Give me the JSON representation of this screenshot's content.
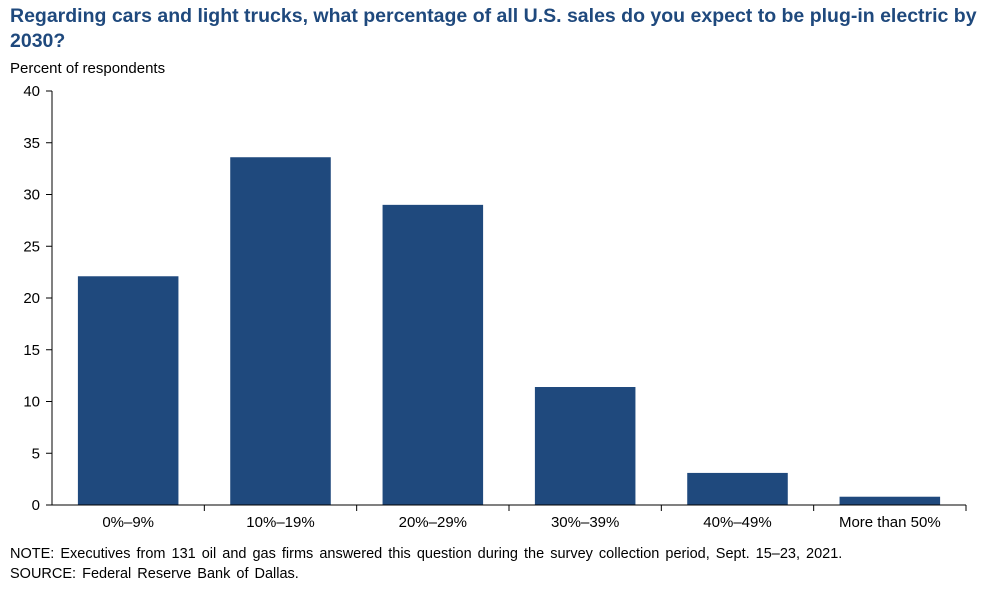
{
  "chart_data": {
    "type": "bar",
    "title": "Regarding cars and light trucks, what percentage of all U.S. sales do you expect to be plug-in electric by 2030?",
    "ylabel": "Percent of respondents",
    "xlabel": "",
    "categories": [
      "0%–9%",
      "10%–19%",
      "20%–29%",
      "30%–39%",
      "40%–49%",
      "More than 50%"
    ],
    "values": [
      22.1,
      33.6,
      29.0,
      11.4,
      3.1,
      0.8
    ],
    "ylim": [
      0,
      40
    ],
    "yticks": [
      0,
      5,
      10,
      15,
      20,
      25,
      30,
      35,
      40
    ],
    "grid": false,
    "legend": "none",
    "bar_color": "#1f497d"
  },
  "note": "NOTE: Executives from 131 oil and gas firms answered this question during the survey collection period, Sept. 15–23, 2021.",
  "source": "SOURCE: Federal Reserve Bank of Dallas."
}
